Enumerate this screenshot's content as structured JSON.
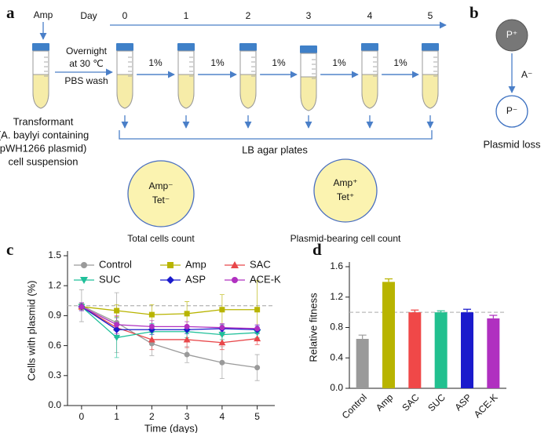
{
  "diagram": {
    "panel_labels": [
      "a",
      "b",
      "c",
      "d"
    ],
    "a": {
      "start_label": "Amp",
      "day_label": "Day",
      "days": [
        0,
        1,
        2,
        3,
        4,
        5
      ],
      "overnight": [
        "Overnight",
        "at 30 ℃"
      ],
      "wash": "PBS wash",
      "dilutions": [
        "1%",
        "1%",
        "1%",
        "1%",
        "1%"
      ],
      "transformant": [
        "Transformant",
        "(A. baylyi containing",
        "pWH1266 plasmid)",
        "cell suspension"
      ],
      "plates": "LB agar plates",
      "plate_total": {
        "lines": [
          "Amp⁻",
          "Tet⁻"
        ],
        "caption": "Total cells count"
      },
      "plate_bearing": {
        "lines": [
          "Amp⁺",
          "Tet⁺"
        ],
        "caption": "Plasmid-bearing cell count"
      }
    },
    "b": {
      "before": "P⁺",
      "agent": "A⁻",
      "after": "P⁻",
      "caption": "Plasmid loss"
    }
  },
  "chart_data": [
    {
      "type": "line",
      "x_label": "Time (days)",
      "y_label": "Cells with plasmid (%)",
      "x": [
        0,
        1,
        2,
        3,
        4,
        5
      ],
      "xlim": [
        -0.4,
        5.5
      ],
      "xticks": [
        0,
        1,
        2,
        3,
        4,
        5
      ],
      "ylim": [
        0,
        1.5
      ],
      "yticks": [
        {
          "value": 0,
          "label": "0.0"
        },
        0.3,
        0.6,
        0.9,
        1.2,
        1.5
      ],
      "reference_line": 1,
      "series": [
        {
          "name": "Control",
          "color": "#9a9a9a",
          "marker": "circle",
          "values": [
            1.0,
            0.83,
            0.62,
            0.51,
            0.43,
            0.38
          ],
          "errors": [
            0.16,
            0.3,
            0.12,
            0.08,
            0.16,
            0.13
          ]
        },
        {
          "name": "Amp",
          "color": "#b8b400",
          "marker": "square",
          "values": [
            0.99,
            0.95,
            0.91,
            0.92,
            0.96,
            0.96
          ],
          "errors": [
            0.03,
            0.06,
            0.1,
            0.12,
            0.15,
            0.29
          ]
        },
        {
          "name": "SAC",
          "color": "#e8474a",
          "marker": "triangle",
          "values": [
            0.99,
            0.78,
            0.66,
            0.66,
            0.63,
            0.67
          ],
          "errors": [
            0.04,
            0.1,
            0.1,
            0.08,
            0.07,
            0.06
          ]
        },
        {
          "name": "SUC",
          "color": "#20c09a",
          "marker": "triangle-down",
          "values": [
            0.99,
            0.68,
            0.74,
            0.74,
            0.71,
            0.73
          ],
          "errors": [
            0.04,
            0.2,
            0.08,
            0.06,
            0.05,
            0.05
          ]
        },
        {
          "name": "ASP",
          "color": "#1a1acc",
          "marker": "diamond",
          "values": [
            0.99,
            0.76,
            0.76,
            0.76,
            0.77,
            0.76
          ],
          "errors": [
            0.04,
            0.08,
            0.05,
            0.04,
            0.04,
            0.04
          ]
        },
        {
          "name": "ACE-K",
          "color": "#b030c0",
          "marker": "circle",
          "values": [
            0.99,
            0.81,
            0.79,
            0.79,
            0.78,
            0.77
          ],
          "errors": [
            0.04,
            0.09,
            0.06,
            0.05,
            0.04,
            0.04
          ]
        }
      ]
    },
    {
      "type": "bar",
      "y_label": "Relative fitness",
      "categories": [
        "Control",
        "Amp",
        "SAC",
        "SUC",
        "ASP",
        "ACE-K"
      ],
      "values": [
        0.65,
        1.4,
        1.0,
        1.0,
        1.0,
        0.92
      ],
      "errors": [
        0.05,
        0.04,
        0.03,
        0.02,
        0.04,
        0.04
      ],
      "colors": [
        "#9a9a9a",
        "#b8b400",
        "#f04848",
        "#22c08f",
        "#1a1acc",
        "#b030c0"
      ],
      "ylim": [
        0,
        1.6
      ],
      "yticks": [
        {
          "value": 0,
          "label": "0.0"
        },
        0.4,
        0.8,
        1.2,
        1.6
      ],
      "reference_line": 1
    }
  ]
}
